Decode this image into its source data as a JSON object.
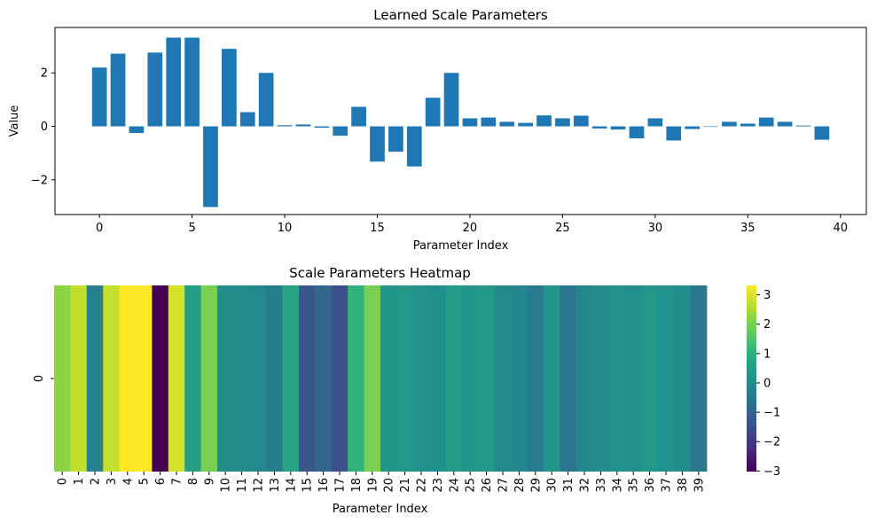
{
  "chart_data": [
    {
      "type": "bar",
      "title": "Learned Scale Parameters",
      "xlabel": "Parameter Index",
      "ylabel": "Value",
      "color": "#1f77b4",
      "xlim": [
        -2.4,
        41.4
      ],
      "ylim": [
        -3.3,
        3.7
      ],
      "xticks": [
        0,
        5,
        10,
        15,
        20,
        25,
        30,
        35,
        40
      ],
      "yticks": [
        -2,
        0,
        2
      ],
      "ytick_labels": [
        "−2",
        "0",
        "2"
      ],
      "x": [
        0,
        1,
        2,
        3,
        4,
        5,
        6,
        7,
        8,
        9,
        10,
        11,
        12,
        13,
        14,
        15,
        16,
        17,
        18,
        19,
        20,
        21,
        22,
        23,
        24,
        25,
        26,
        27,
        28,
        29,
        30,
        31,
        32,
        33,
        34,
        35,
        36,
        37,
        38,
        39
      ],
      "values": [
        2.2,
        2.72,
        -0.25,
        2.76,
        3.32,
        3.32,
        -3.02,
        2.9,
        0.53,
        2.0,
        0.04,
        0.07,
        -0.05,
        -0.35,
        0.73,
        -1.32,
        -0.95,
        -1.5,
        1.07,
        2.0,
        0.3,
        0.33,
        0.17,
        0.13,
        0.41,
        0.3,
        0.4,
        -0.08,
        -0.12,
        -0.45,
        0.3,
        -0.53,
        -0.1,
        0.0,
        0.17,
        0.1,
        0.33,
        0.17,
        0.03,
        -0.5
      ]
    },
    {
      "type": "heatmap",
      "title": "Scale Parameters Heatmap",
      "xlabel": "Parameter Index",
      "ylabel": "",
      "row_labels": [
        "0"
      ],
      "columns": [
        "0",
        "1",
        "2",
        "3",
        "4",
        "5",
        "6",
        "7",
        "8",
        "9",
        "10",
        "11",
        "12",
        "13",
        "14",
        "15",
        "16",
        "17",
        "18",
        "19",
        "20",
        "21",
        "22",
        "23",
        "24",
        "25",
        "26",
        "27",
        "28",
        "29",
        "30",
        "31",
        "32",
        "33",
        "34",
        "35",
        "36",
        "37",
        "38",
        "39"
      ],
      "values": [
        [
          2.2,
          2.72,
          -0.25,
          2.76,
          3.32,
          3.32,
          -3.02,
          2.9,
          0.53,
          2.0,
          0.04,
          0.07,
          -0.05,
          -0.35,
          0.73,
          -1.32,
          -0.95,
          -1.5,
          1.07,
          2.0,
          0.3,
          0.33,
          0.17,
          0.13,
          0.41,
          0.3,
          0.4,
          -0.08,
          -0.12,
          -0.45,
          0.3,
          -0.53,
          -0.1,
          0.0,
          0.17,
          0.1,
          0.33,
          0.17,
          0.03,
          -0.5
        ]
      ],
      "colormap": "viridis",
      "colorbar": {
        "range": [
          -3.02,
          3.32
        ],
        "ticks": [
          -3,
          -2,
          -1,
          0,
          1,
          2,
          3
        ],
        "tick_labels": [
          "−3",
          "−2",
          "−1",
          "0",
          "1",
          "2",
          "3"
        ]
      }
    }
  ]
}
